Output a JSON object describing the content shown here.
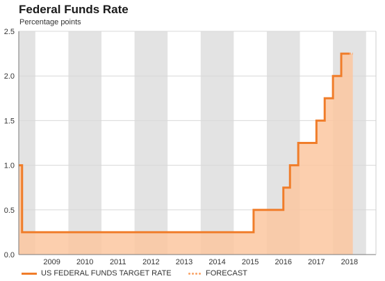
{
  "header": {
    "title": "Federal Funds Rate",
    "subtitle": "Percentage points"
  },
  "chart_data": {
    "type": "area",
    "title": "Federal Funds Rate",
    "subtitle": "Percentage points",
    "xlabel": "",
    "ylabel": "",
    "xlim": [
      2008.5,
      2019.3
    ],
    "ylim": [
      0,
      2.5
    ],
    "y_ticks": [
      "0.0",
      "0.5",
      "1.0",
      "1.5",
      "2.0",
      "2.5"
    ],
    "x_ticks": [
      "2009",
      "2010",
      "2011",
      "2012",
      "2013",
      "2014",
      "2015",
      "2016",
      "2017",
      "2018"
    ],
    "grid": "horizontal",
    "alternating_year_shading": true,
    "legend_position": "bottom",
    "series": [
      {
        "name": "US FEDERAL FUNDS TARGET RATE",
        "color": "#f07d2a",
        "fill": "#fcc7a0",
        "step": true,
        "points": [
          {
            "x": 2008.5,
            "y": 1.0
          },
          {
            "x": 2008.6,
            "y": 0.25
          },
          {
            "x": 2015.6,
            "y": 0.5
          },
          {
            "x": 2016.5,
            "y": 0.75
          },
          {
            "x": 2016.7,
            "y": 1.0
          },
          {
            "x": 2016.95,
            "y": 1.25
          },
          {
            "x": 2017.5,
            "y": 1.5
          },
          {
            "x": 2017.75,
            "y": 1.75
          },
          {
            "x": 2018.0,
            "y": 2.0
          },
          {
            "x": 2018.25,
            "y": 2.25
          },
          {
            "x": 2018.5,
            "y": 2.25
          }
        ]
      },
      {
        "name": "FORECAST",
        "color": "#f9a66b",
        "dotted": true,
        "points": [
          {
            "x": 2018.5,
            "y": 2.25
          },
          {
            "x": 2018.6,
            "y": 2.25
          }
        ]
      }
    ]
  },
  "legend": {
    "items": [
      "US FEDERAL FUNDS TARGET RATE",
      "FORECAST"
    ]
  },
  "colors": {
    "line": "#f07d2a",
    "fill": "#fcc7a0",
    "band": "#e3e3e3",
    "grid": "#d8d8d8",
    "axis": "#7a7a7a"
  }
}
